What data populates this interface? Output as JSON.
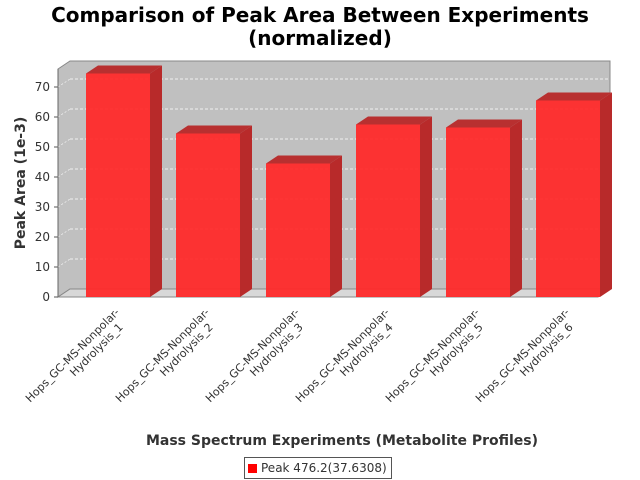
{
  "chart_data": {
    "type": "bar",
    "title": "Comparison of Peak Area Between Experiments",
    "subtitle": "(normalized)",
    "xlabel": "Mass Spectrum Experiments (Metabolite Profiles)",
    "ylabel": "Peak Area (1e-3)",
    "ylim": [
      0,
      75
    ],
    "yticks": [
      0,
      10,
      20,
      30,
      40,
      50,
      60,
      70
    ],
    "categories": [
      "Hops_GC-MS-Nonpolar-Hydrolysis_1",
      "Hops_GC-MS-Nonpolar-Hydrolysis_2",
      "Hops_GC-MS-Nonpolar-Hydrolysis_3",
      "Hops_GC-MS-Nonpolar-Hydrolysis_4",
      "Hops_GC-MS-Nonpolar-Hydrolysis_5",
      "Hops_GC-MS-Nonpolar-Hydrolysis_6"
    ],
    "tick_label_lines": [
      [
        "Hops_GC-MS-Nonpolar-",
        "Hydrolysis_1"
      ],
      [
        "Hops_GC-MS-Nonpolar-",
        "Hydrolysis_2"
      ],
      [
        "Hops_GC-MS-Nonpolar-",
        "Hydrolysis_3"
      ],
      [
        "Hops_GC-MS-Nonpolar-",
        "Hydrolysis_4"
      ],
      [
        "Hops_GC-MS-Nonpolar-",
        "Hydrolysis_5"
      ],
      [
        "Hops_GC-MS-Nonpolar-",
        "Hydrolysis_6"
      ]
    ],
    "series": [
      {
        "name": "Peak 476.2(37.6308)",
        "values": [
          74.5,
          54.5,
          44.5,
          57.5,
          56.5,
          65.5
        ]
      }
    ],
    "grid": true,
    "legend_position": "bottom",
    "colors": {
      "bar": "#ff2a2a",
      "bar_top": "#b83030",
      "bar_side": "#b82a2a",
      "plot_bg": "#c0c0c0",
      "legend_swatch": "#ff0000"
    }
  }
}
